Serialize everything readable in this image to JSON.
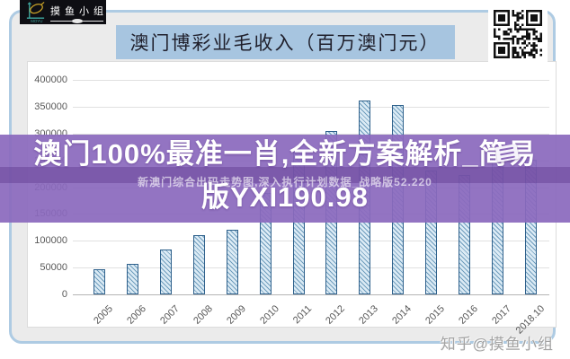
{
  "page": {
    "logo": {
      "brand_cn": "摸鱼小组",
      "brand_en": "MOYU"
    },
    "title": "澳门博彩业毛收入（百万澳门元）",
    "watermark": "知乎@摸鱼小组"
  },
  "banner": {
    "line1": "澳门100%最准一肖,全新方案解析_简易",
    "line2": "版YXI190.98",
    "subtext": "新澳门综合出码走势图,深入执行计划数据_战略版52.220",
    "bg_color": "#8b69bd"
  },
  "chart_data": {
    "type": "bar",
    "title": "澳门博彩业毛收入（百万澳门元）",
    "categories": [
      "2005",
      "2006",
      "2007",
      "2008",
      "2009",
      "2010",
      "2011",
      "2012",
      "2013",
      "2014",
      "2015",
      "2016",
      "2017",
      "2018.10"
    ],
    "values": [
      47000,
      57500,
      84000,
      110000,
      120500,
      189500,
      269000,
      305000,
      361500,
      352500,
      231800,
      223200,
      265700,
      251000
    ],
    "xlabel": "",
    "ylabel": "",
    "ylim": [
      0,
      400000
    ],
    "yticks": [
      0,
      50000,
      100000,
      150000,
      200000,
      250000,
      300000,
      350000,
      400000
    ],
    "grid": true,
    "legend": false,
    "bar_fill": "#dcebf5",
    "bar_hatch": "#6f9dbd",
    "bar_border": "#2f618c"
  }
}
